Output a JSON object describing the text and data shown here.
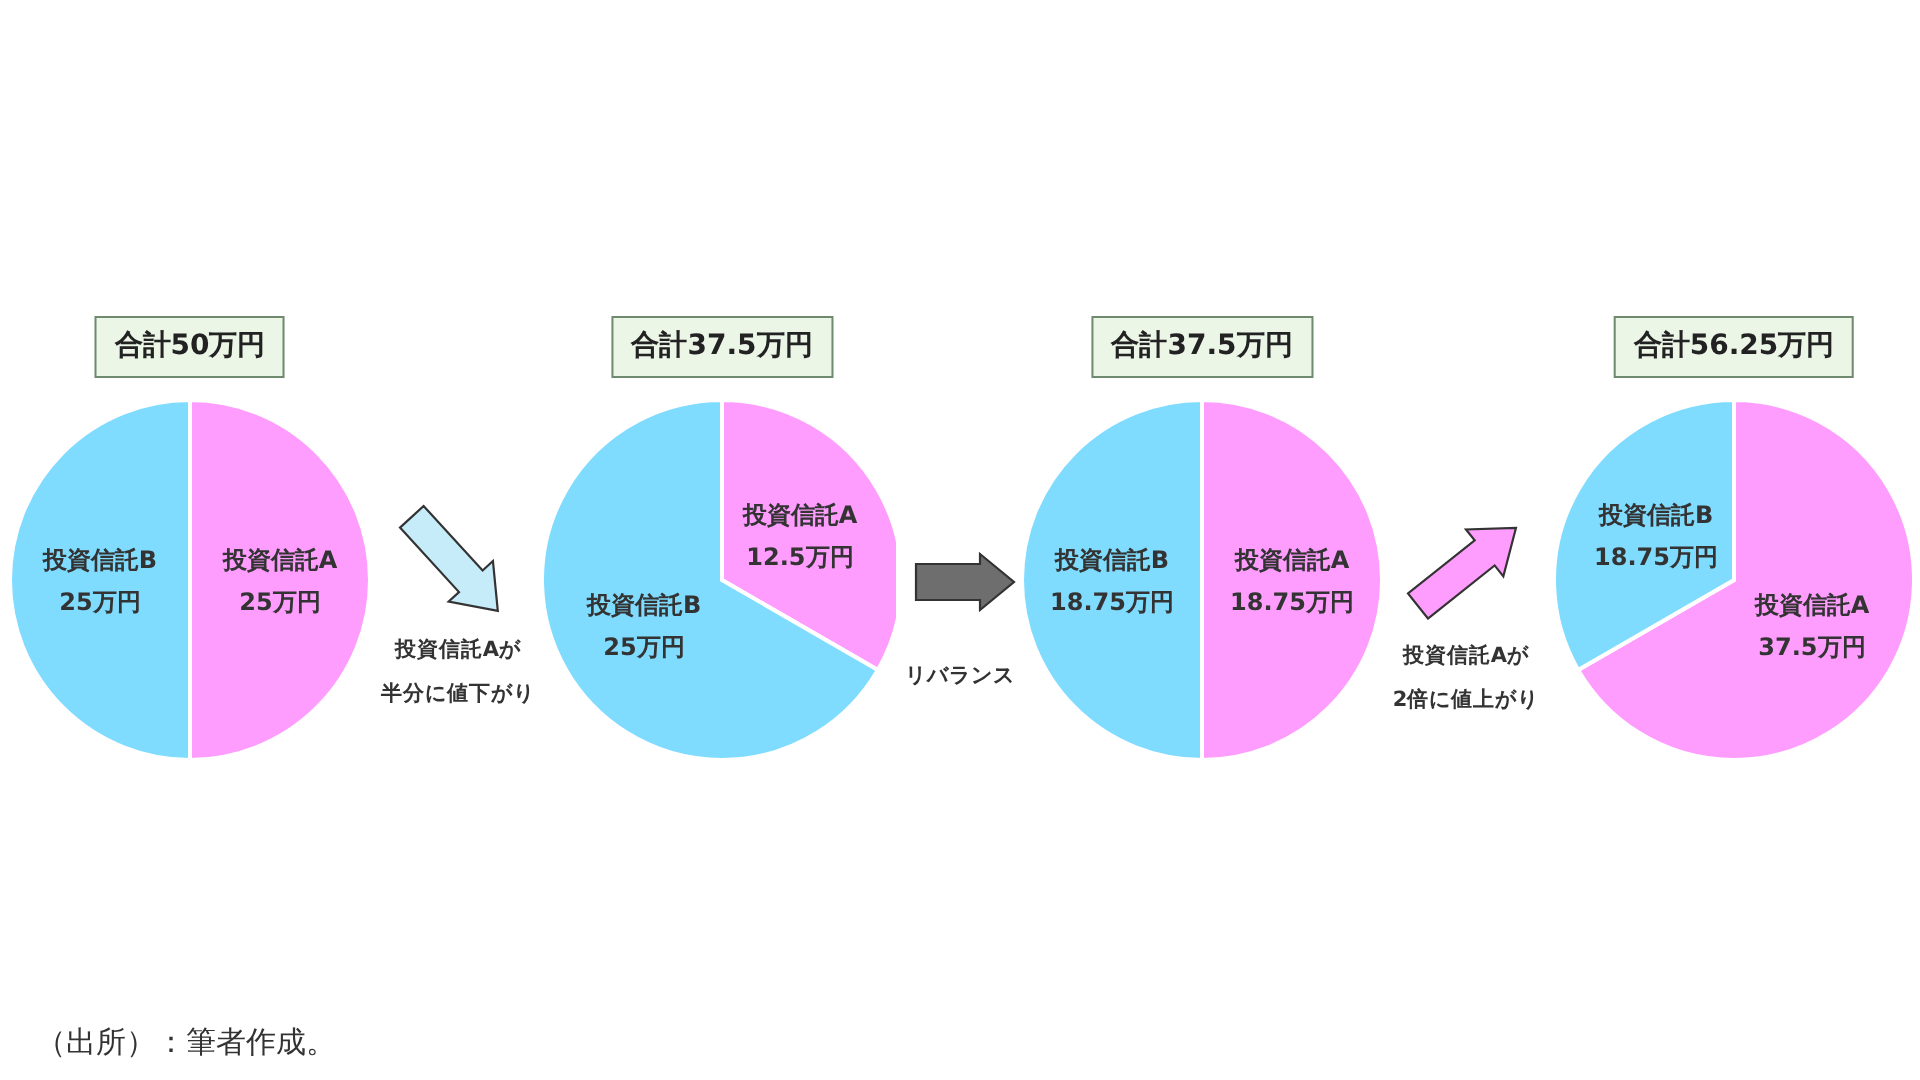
{
  "chart_data": [
    {
      "type": "pie",
      "title": "合計50万円",
      "categories": [
        "投資信託A",
        "投資信託B"
      ],
      "values": [
        25,
        25
      ],
      "colors": [
        "#ff9dff",
        "#80dcff"
      ],
      "value_labels": [
        "25万円",
        "25万円"
      ],
      "annotations": [
        "（出所）：筆者作成。"
      ]
    },
    {
      "type": "pie",
      "title": "合計37.5万円",
      "categories": [
        "投資信託A",
        "投資信託B"
      ],
      "values": [
        12.5,
        25
      ],
      "colors": [
        "#ff9dff",
        "#80dcff"
      ],
      "value_labels": [
        "12.5万円",
        "25万円"
      ],
      "annotations": [
        "投資信託Aが",
        "半分に値下がり"
      ]
    },
    {
      "type": "pie",
      "title": "合計37.5万円",
      "categories": [
        "投資信託A",
        "投資信託B"
      ],
      "values": [
        18.75,
        18.75
      ],
      "colors": [
        "#ff9dff",
        "#80dcff"
      ],
      "value_labels": [
        "18.75万円",
        "18.75万円"
      ],
      "annotations": [
        "リバランス"
      ]
    },
    {
      "type": "pie",
      "title": "合計56.25万円",
      "categories": [
        "投資信託A",
        "投資信託B"
      ],
      "values": [
        37.5,
        18.75
      ],
      "colors": [
        "#ff9dff",
        "#80dcff"
      ],
      "value_labels": [
        "37.5万円",
        "18.75万円"
      ],
      "annotations": [
        "投資信託Aが",
        "2倍に値上がり"
      ]
    }
  ]
}
